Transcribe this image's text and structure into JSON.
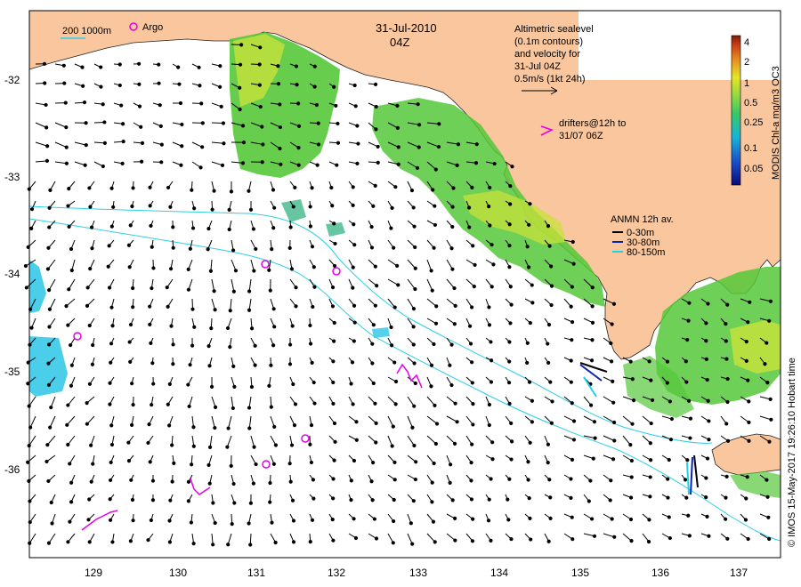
{
  "header": {
    "date": "31-Jul-2010",
    "time": "04Z"
  },
  "legend_tl": {
    "isobaths": "200  1000m",
    "argo": "Argo"
  },
  "altimetry_note": {
    "line1": "Altimetric sealevel",
    "line2": "(0.1m contours)",
    "line3": "and velocity for",
    "line4": "31-Jul 04Z",
    "line5": "0.5m/s (1kt 24h)"
  },
  "drifters_note": {
    "line1": "drifters@12h to",
    "line2": "31/07 06Z"
  },
  "anmn_legend": {
    "title": "ANMN 12h av.",
    "items": [
      {
        "label": "0-30m",
        "color": "#000000"
      },
      {
        "label": "30-80m",
        "color": "#0a22b4"
      },
      {
        "label": "80-150m",
        "color": "#1fd2e6"
      }
    ]
  },
  "colorbar": {
    "title": "MODIS Chl-a mg/m3 OC3",
    "ticks": [
      "4",
      "2",
      "1",
      "0.5",
      "0.25",
      "0.1",
      "0.05"
    ]
  },
  "axes": {
    "x_ticks": [
      "129",
      "130",
      "131",
      "132",
      "133",
      "134",
      "135",
      "136",
      "137"
    ],
    "y_ticks": [
      "-32",
      "-33",
      "-34",
      "-35",
      "-36"
    ]
  },
  "credit": "© IMOS 15-May-2017 19:26:10 Hobart time",
  "colors": {
    "land": "#f9c69d",
    "chl_green": "#55c83a",
    "chl_yellow": "#c8e23a",
    "chl_cyan": "#2cc6e6",
    "argo": "#e600e6",
    "drifter": "#e600e6",
    "isobath": "#2ad0e6"
  }
}
